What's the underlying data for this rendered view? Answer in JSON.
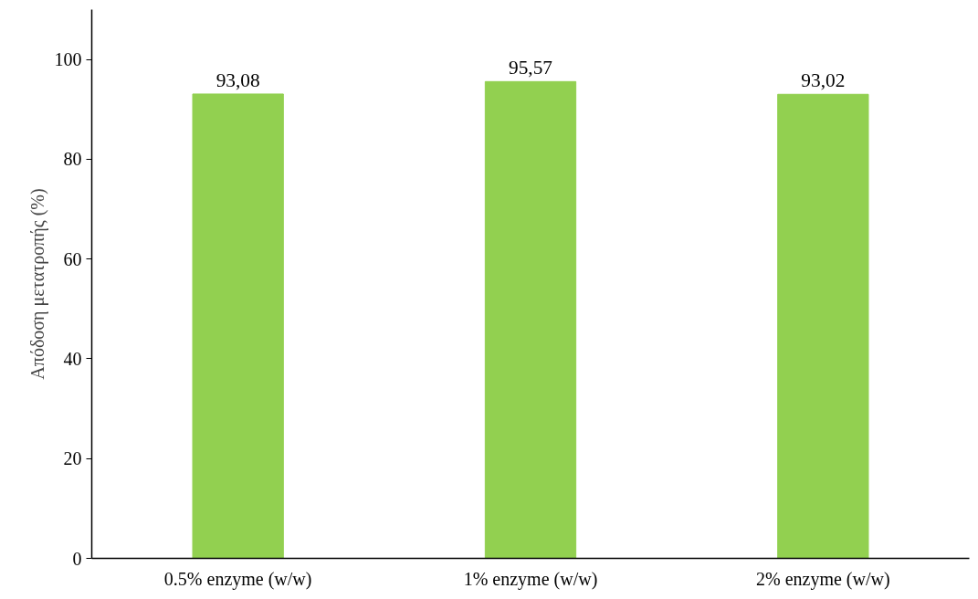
{
  "chart_data": {
    "type": "bar",
    "ylabel": "Απόδοση μετατροπής (%)",
    "categories": [
      "0.5% enzyme (w/w)",
      "1% enzyme (w/w)",
      "2% enzyme (w/w)"
    ],
    "values": [
      93.08,
      95.57,
      93.02
    ],
    "value_labels": [
      "93,08",
      "95,57",
      "93,02"
    ],
    "color": "#92d050",
    "ylim": [
      0,
      110
    ],
    "yticks": [
      0,
      20,
      40,
      60,
      80,
      100
    ],
    "grid": false
  }
}
